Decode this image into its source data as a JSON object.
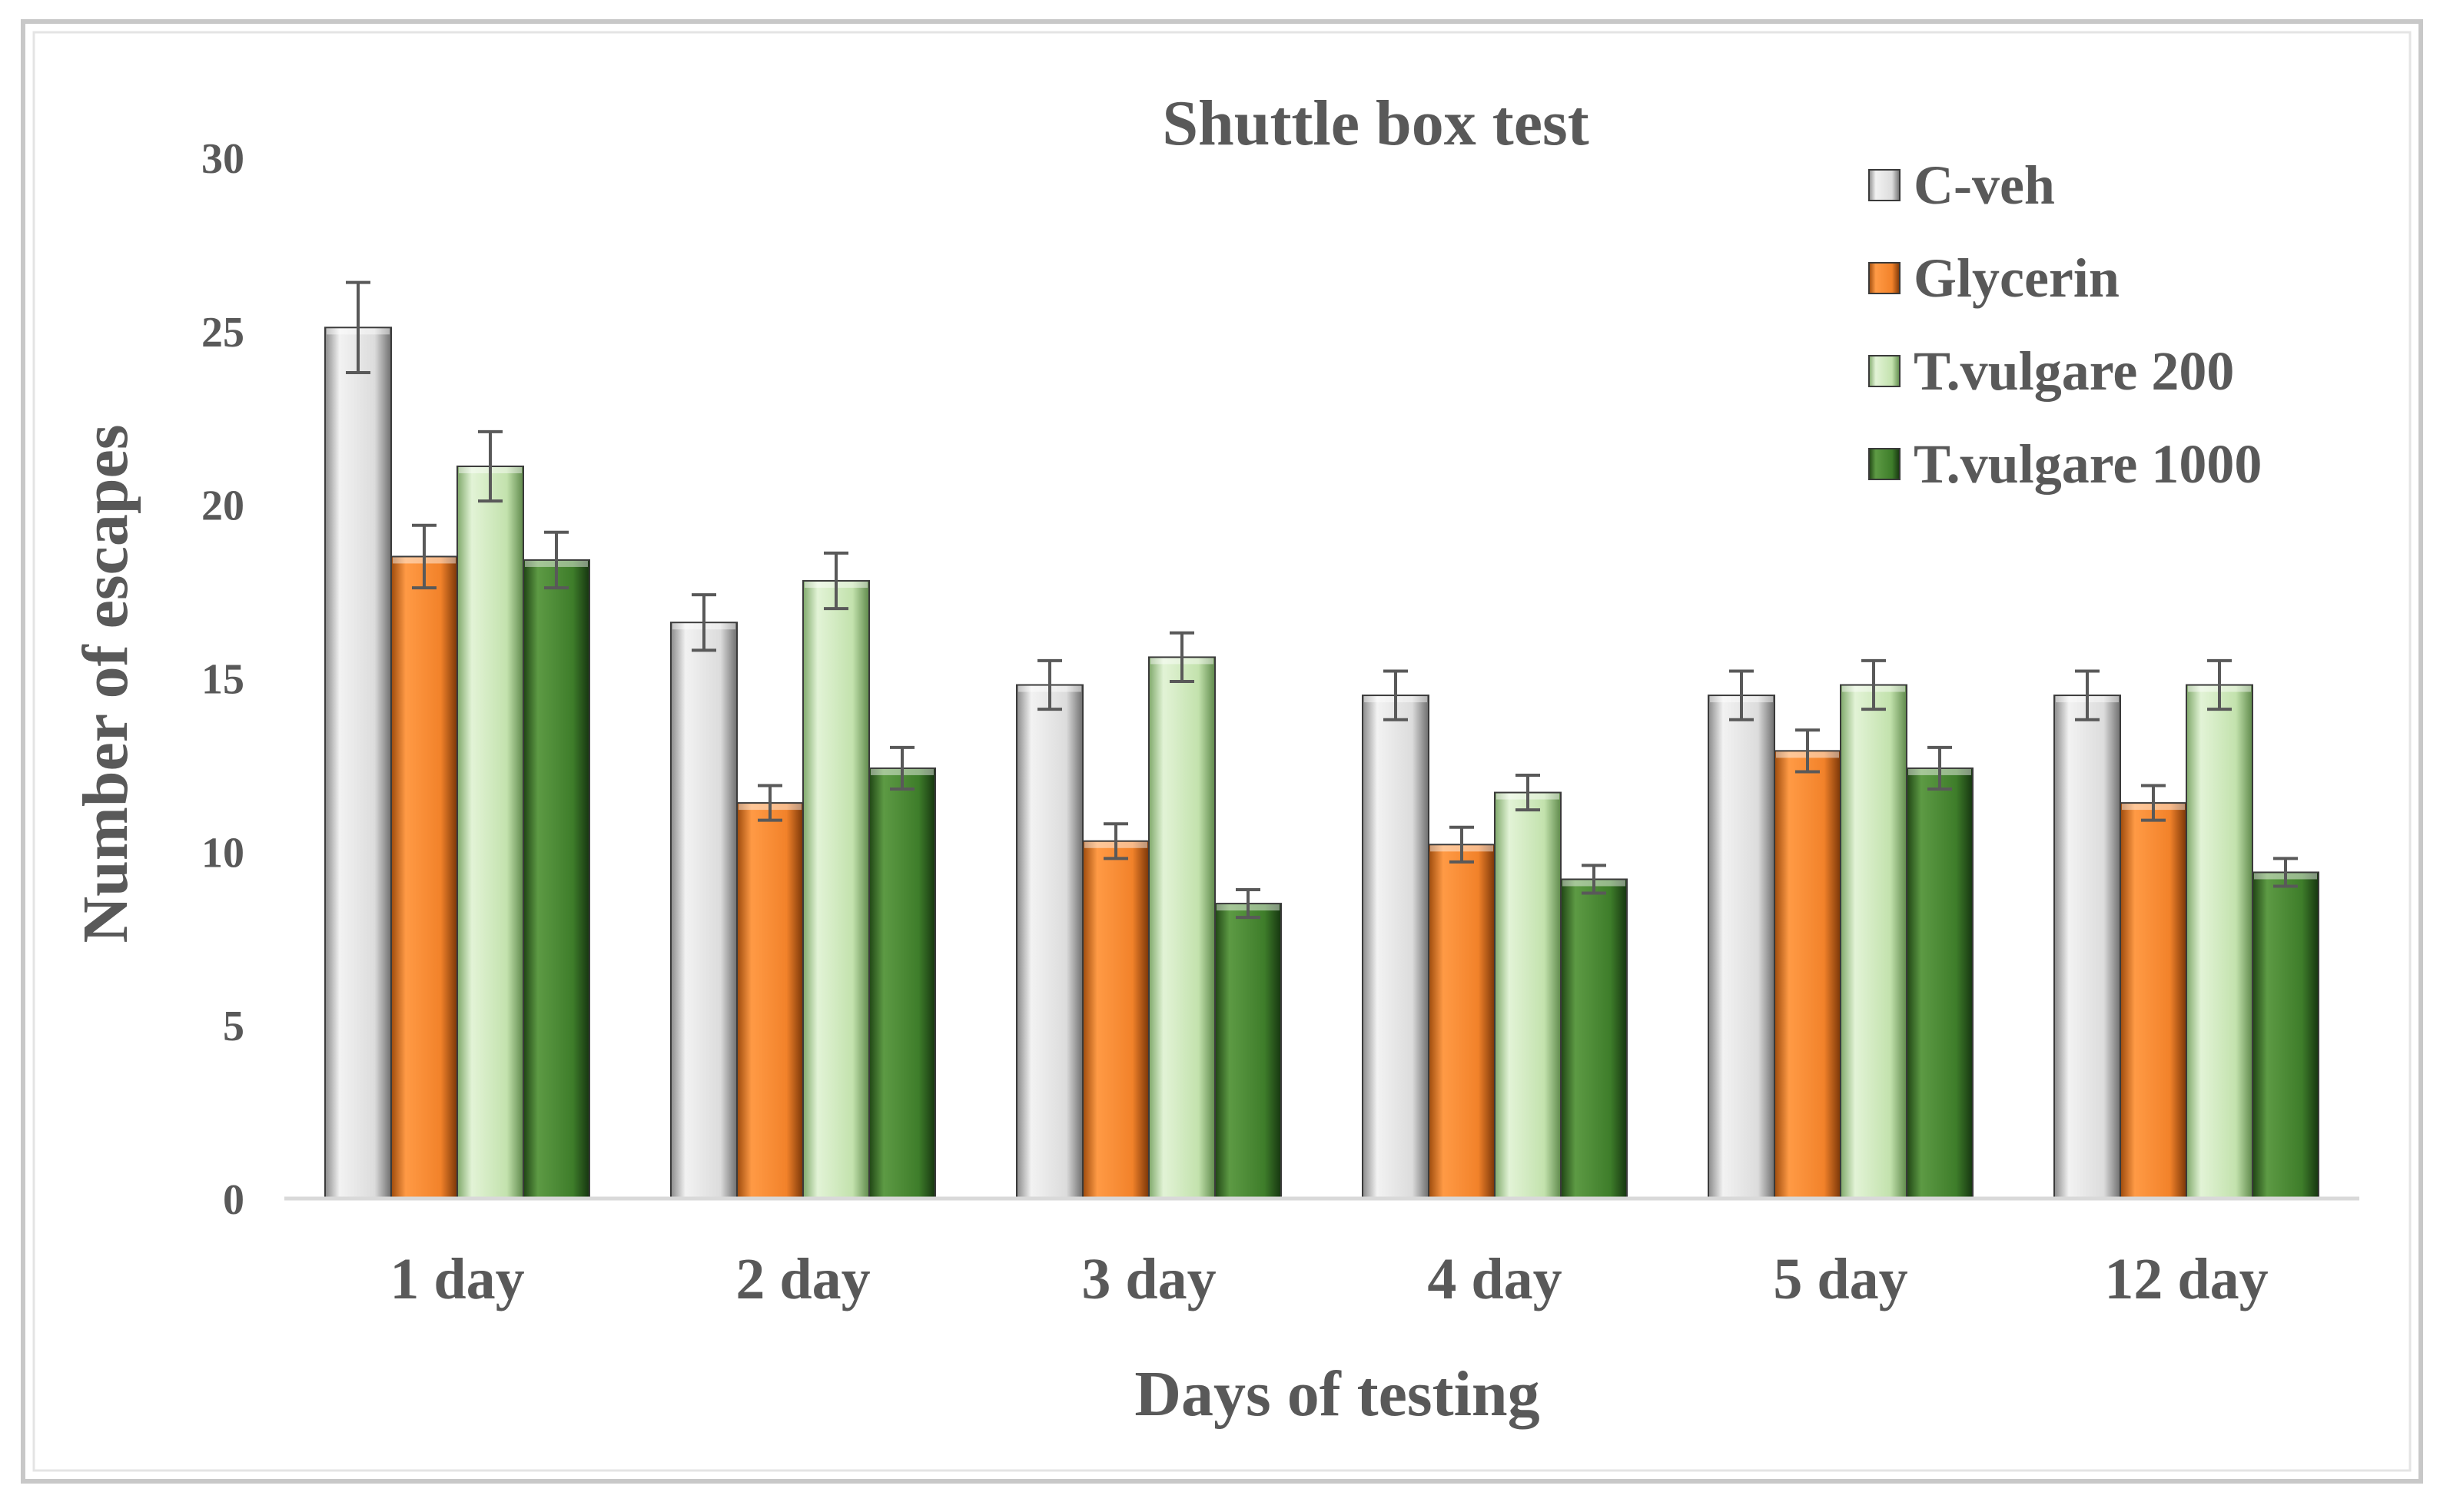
{
  "chart_data": {
    "type": "bar",
    "title": "Shuttle box test",
    "xlabel": "Days of testing",
    "ylabel": "Number of escapes",
    "ylim": [
      0,
      30
    ],
    "yticks": [
      "0",
      "5",
      "10",
      "15",
      "20",
      "25",
      "30"
    ],
    "grid": false,
    "legend_position": "top-right",
    "categories": [
      "1 day",
      "2 day",
      "3 day",
      "4 day",
      "5 day",
      "12 day"
    ],
    "series": [
      {
        "name": "C-veh",
        "color": "#d9d9d9",
        "values": [
          25.1,
          16.6,
          14.8,
          14.5,
          14.5,
          14.5
        ],
        "errors": [
          1.3,
          0.8,
          0.7,
          0.7,
          0.7,
          0.7
        ]
      },
      {
        "name": "Glycerin",
        "color": "#f58220",
        "values": [
          18.5,
          11.4,
          10.3,
          10.2,
          12.9,
          11.4
        ],
        "errors": [
          0.9,
          0.5,
          0.5,
          0.5,
          0.6,
          0.5
        ]
      },
      {
        "name": "T.vulgare 200",
        "color": "#c6e5b3",
        "values": [
          21.1,
          17.8,
          15.6,
          11.7,
          14.8,
          14.8
        ],
        "errors": [
          1.0,
          0.8,
          0.7,
          0.5,
          0.7,
          0.7
        ]
      },
      {
        "name": "T.vulgare 1000",
        "color": "#3f7f2a",
        "values": [
          18.4,
          12.4,
          8.5,
          9.2,
          12.4,
          9.4
        ],
        "errors": [
          0.8,
          0.6,
          0.4,
          0.4,
          0.6,
          0.4
        ]
      }
    ]
  }
}
